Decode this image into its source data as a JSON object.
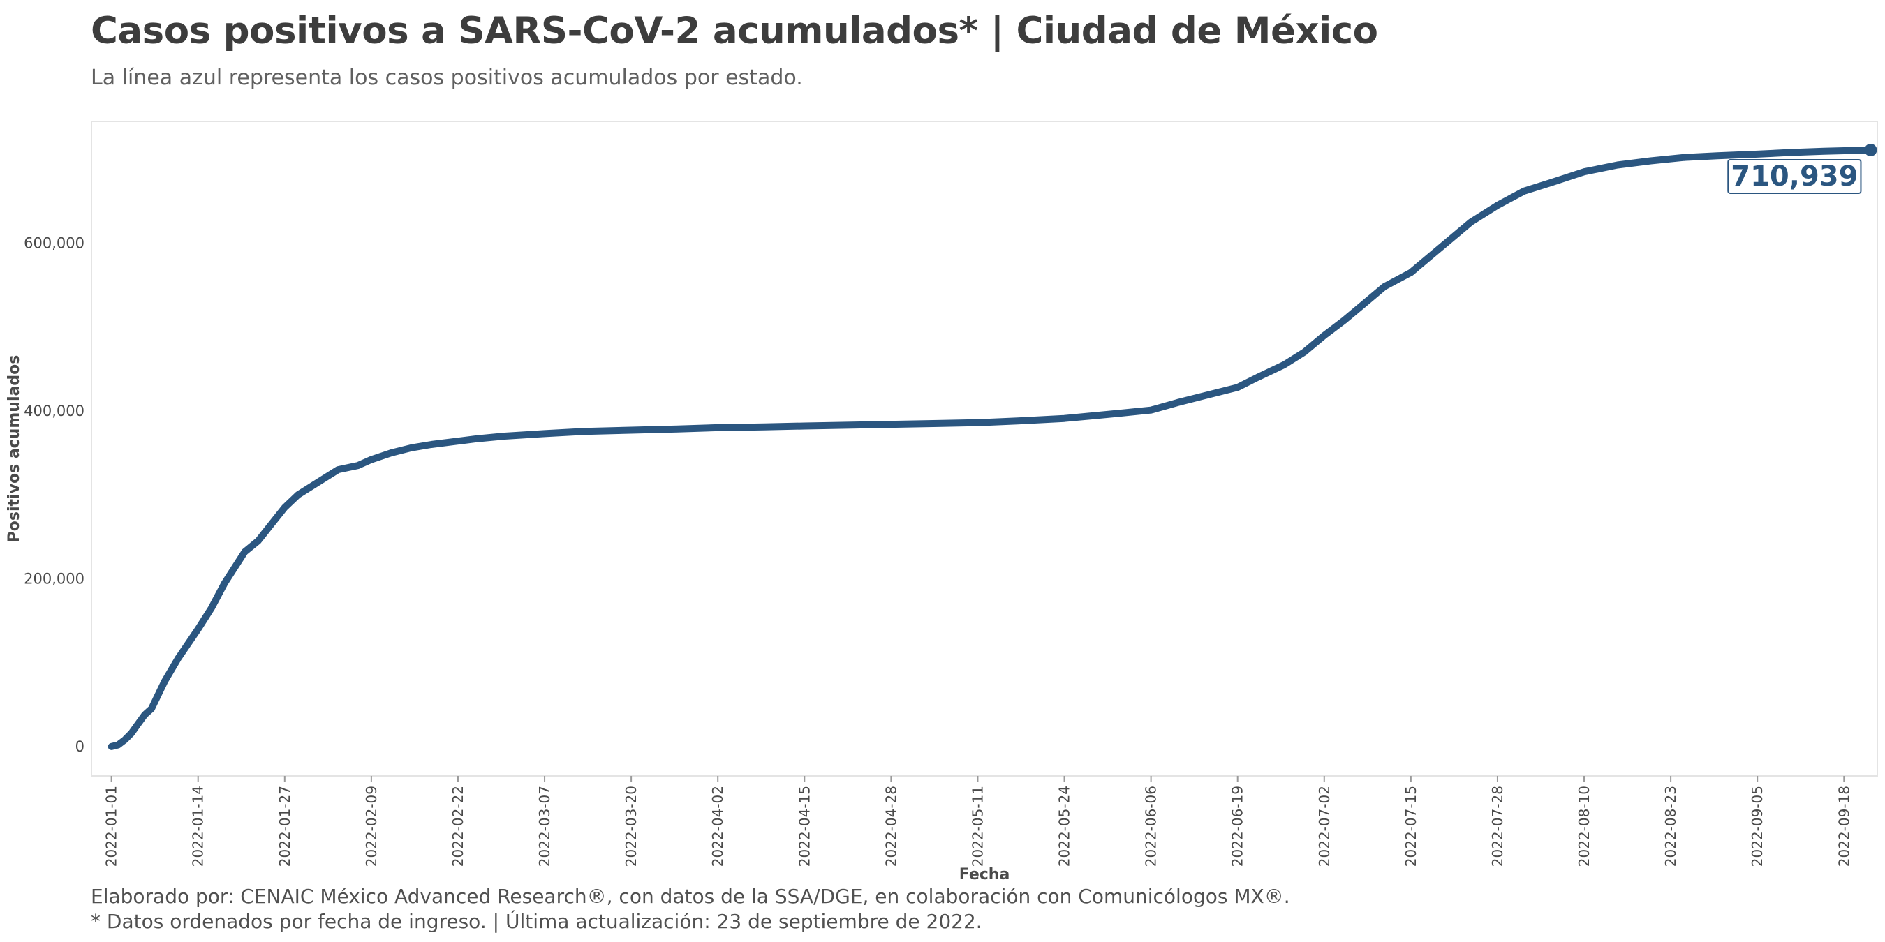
{
  "header": {
    "title": "Casos positivos a SARS-CoV-2 acumulados* | Ciudad de México",
    "subtitle": "La línea azul representa los casos positivos acumulados por estado."
  },
  "footer": {
    "caption_line1": "Elaborado por: CENAIC México Advanced Research®, con datos de la SSA/DGE, en colaboración con Comunicólogos MX®.",
    "caption_line2": "* Datos ordenados por fecha de ingreso. | Última actualización: 23 de septiembre de 2022."
  },
  "colors": {
    "line": "#2b5680",
    "panel_border": "#e4e4e4",
    "background": "#ffffff"
  },
  "chart_data": {
    "type": "line",
    "title": "Casos positivos a SARS-CoV-2 acumulados* | Ciudad de México",
    "subtitle": "La línea azul representa los casos positivos acumulados por estado.",
    "xlabel": "Fecha",
    "ylabel": "Positivos acumulados",
    "x_type": "date",
    "xlim": [
      "2021-12-29",
      "2022-09-23"
    ],
    "ylim": [
      -35000,
      745000
    ],
    "grid": false,
    "legend": "none",
    "x_ticks": [
      "2022-01-01",
      "2022-01-14",
      "2022-01-27",
      "2022-02-09",
      "2022-02-22",
      "2022-03-07",
      "2022-03-20",
      "2022-04-02",
      "2022-04-15",
      "2022-04-28",
      "2022-05-11",
      "2022-05-24",
      "2022-06-06",
      "2022-06-19",
      "2022-07-02",
      "2022-07-15",
      "2022-07-28",
      "2022-08-10",
      "2022-08-23",
      "2022-09-05",
      "2022-09-18"
    ],
    "y_ticks": [
      0,
      200000,
      400000,
      600000
    ],
    "y_tick_labels": [
      "0",
      "200,000",
      "400,000",
      "600,000"
    ],
    "series": [
      {
        "x": [
          "2022-01-01",
          "2022-01-02",
          "2022-01-03",
          "2022-01-04",
          "2022-01-05",
          "2022-01-06",
          "2022-01-07",
          "2022-01-09",
          "2022-01-11",
          "2022-01-14",
          "2022-01-16",
          "2022-01-18",
          "2022-01-21",
          "2022-01-23",
          "2022-01-25",
          "2022-01-27",
          "2022-01-29",
          "2022-02-01",
          "2022-02-04",
          "2022-02-07",
          "2022-02-09",
          "2022-02-12",
          "2022-02-15",
          "2022-02-18",
          "2022-02-22",
          "2022-02-25",
          "2022-03-01",
          "2022-03-07",
          "2022-03-13",
          "2022-03-20",
          "2022-03-27",
          "2022-04-02",
          "2022-04-09",
          "2022-04-15",
          "2022-04-22",
          "2022-04-28",
          "2022-05-05",
          "2022-05-11",
          "2022-05-17",
          "2022-05-24",
          "2022-05-28",
          "2022-06-01",
          "2022-06-06",
          "2022-06-10",
          "2022-06-14",
          "2022-06-19",
          "2022-06-22",
          "2022-06-26",
          "2022-06-29",
          "2022-07-02",
          "2022-07-05",
          "2022-07-08",
          "2022-07-11",
          "2022-07-15",
          "2022-07-18",
          "2022-07-21",
          "2022-07-24",
          "2022-07-28",
          "2022-08-01",
          "2022-08-05",
          "2022-08-10",
          "2022-08-15",
          "2022-08-20",
          "2022-08-25",
          "2022-08-30",
          "2022-09-05",
          "2022-09-10",
          "2022-09-15",
          "2022-09-20",
          "2022-09-22"
        ],
        "values": [
          0,
          2000,
          8000,
          16000,
          27000,
          38000,
          45000,
          78000,
          105000,
          140000,
          165000,
          195000,
          232000,
          245000,
          265000,
          285000,
          300000,
          315000,
          330000,
          335000,
          342000,
          350000,
          356000,
          360000,
          364000,
          367000,
          370000,
          373000,
          375500,
          377000,
          378500,
          380000,
          381000,
          382000,
          383000,
          384000,
          385000,
          386000,
          388000,
          391000,
          394000,
          397000,
          401000,
          410000,
          418000,
          428000,
          440000,
          455000,
          470000,
          490000,
          508000,
          528000,
          548000,
          565000,
          585000,
          605000,
          625000,
          645000,
          662000,
          672000,
          685000,
          693000,
          698000,
          702000,
          704000,
          706000,
          708000,
          709500,
          710500,
          710939
        ]
      }
    ],
    "end_label": "710,939"
  }
}
